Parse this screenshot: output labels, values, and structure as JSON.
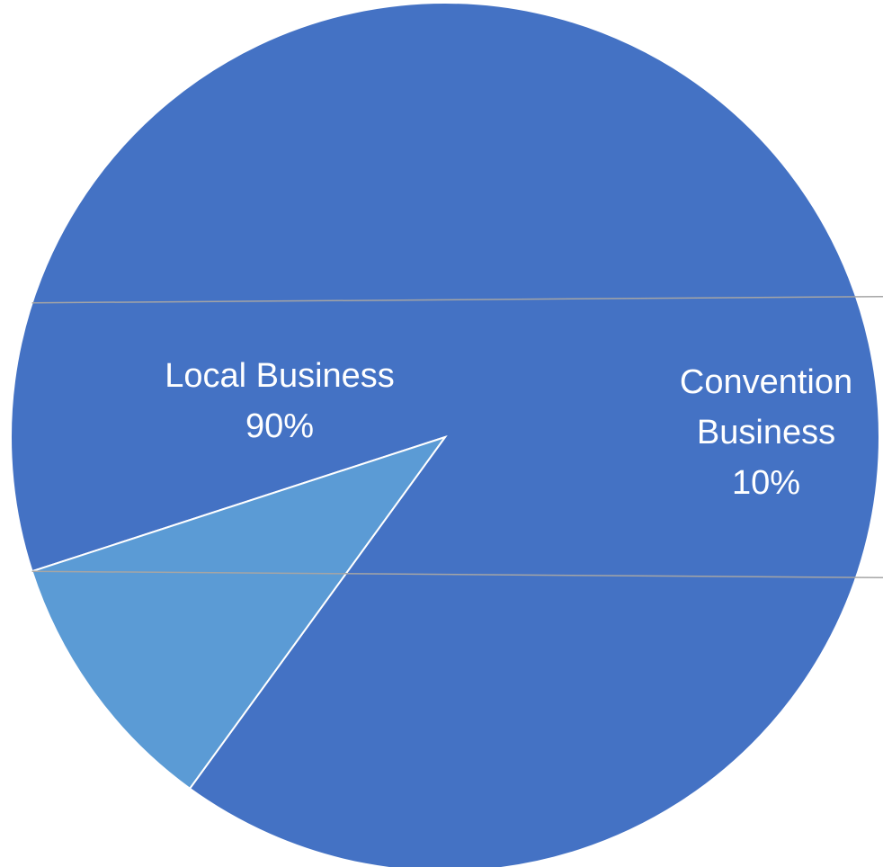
{
  "chart_data": {
    "type": "pie",
    "slices": [
      {
        "label": [
          "Local Business"
        ],
        "value": 90,
        "percent_label": "90%",
        "color": "#4472C4"
      },
      {
        "label": [
          "Convention",
          "Business"
        ],
        "value": 10,
        "percent_label": "10%",
        "color": "#5B9BD5"
      }
    ],
    "title": "",
    "legend": "none",
    "separator_color": "#ffffff",
    "leader_line_color": "#A5A5A5"
  }
}
